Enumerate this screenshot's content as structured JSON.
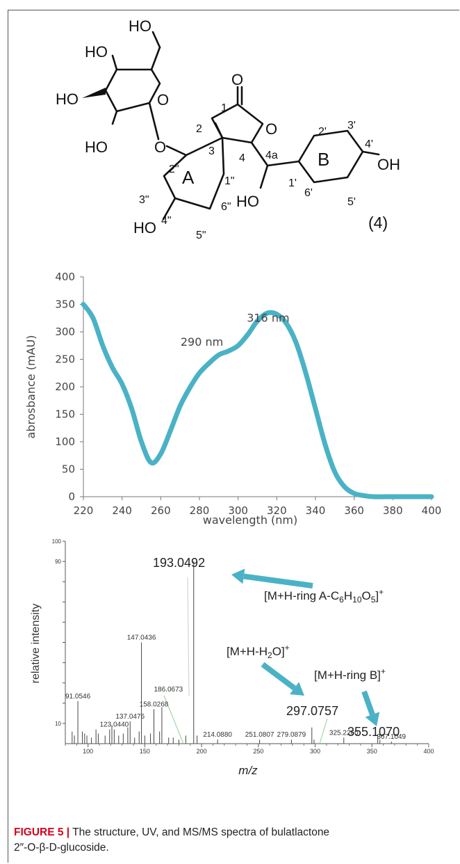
{
  "figure": {
    "caption_label": "FIGURE 5 |",
    "caption_text": " The structure, UV, and MS/MS spectra of bulatlactone 2″-O-β-D-glucoside.",
    "caption_text_part1": " The structure, UV, and MS/MS spectra of bulatlactone",
    "caption_text_part2": "2″-O-β-D-glucoside."
  },
  "structure": {
    "compound_label": "(4)",
    "groups": {
      "ho_top": "HO",
      "ho_c4": "HO",
      "ho_c3": "HO",
      "ho_c2": "HO",
      "ring_o": "O",
      "glyc_o": "O",
      "lactone_o": "O",
      "carbonyl_o": "O",
      "oh_b": "OH",
      "ho_4a": "HO",
      "ho_a": "HO"
    },
    "ring_labels": {
      "a": "A",
      "b": "B"
    },
    "atom_labels": {
      "c1": "1",
      "c2": "2",
      "c3": "3",
      "c4": "4",
      "c4a": "4a",
      "c2p": "2'",
      "c3p": "3'",
      "c4p": "4'",
      "c5p": "5'",
      "c6p": "6'",
      "c1p": "1'",
      "c1pp": "1\"",
      "c2pp": "2\"",
      "c3pp": "3\"",
      "c4pp": "4\"",
      "c5pp": "5\"",
      "c6pp": "6\""
    }
  },
  "chart_data": [
    {
      "type": "line",
      "title": "",
      "xlabel": "wavelength (nm)",
      "ylabel": "abrosbance (mAU)",
      "xlim": [
        220,
        400
      ],
      "ylim": [
        0,
        400
      ],
      "xticks": [
        220,
        240,
        260,
        280,
        300,
        320,
        340,
        360,
        380,
        400
      ],
      "yticks": [
        0,
        50,
        100,
        150,
        200,
        250,
        300,
        350,
        400
      ],
      "grid": false,
      "color": "#4ab2c6",
      "annotations": [
        {
          "text": "316 nm",
          "x": 316,
          "y": 350
        },
        {
          "text": "290 nm",
          "x": 290,
          "y": 290
        }
      ],
      "series": [
        {
          "x": [
            220,
            225,
            230,
            235,
            240,
            245,
            250,
            255,
            260,
            265,
            270,
            275,
            280,
            285,
            290,
            295,
            300,
            305,
            310,
            315,
            320,
            325,
            330,
            335,
            340,
            345,
            350,
            355,
            360,
            365,
            370,
            380,
            390,
            400
          ],
          "y": [
            350,
            325,
            275,
            235,
            205,
            160,
            100,
            62,
            78,
            120,
            165,
            198,
            225,
            243,
            258,
            265,
            275,
            295,
            320,
            334,
            332,
            315,
            280,
            225,
            160,
            95,
            45,
            18,
            6,
            2,
            0,
            0,
            0,
            0
          ]
        }
      ]
    },
    {
      "type": "bar",
      "title": "",
      "xlabel": "m/z",
      "ylabel": "relative intensity",
      "xlim": [
        80,
        400
      ],
      "ylim": [
        0,
        100
      ],
      "xticks": [
        100,
        150,
        200,
        250,
        300,
        350,
        400
      ],
      "yticks": [
        10,
        20,
        30,
        40,
        50,
        60,
        70,
        80,
        90,
        100
      ],
      "ytick_labels": [
        "10",
        "",
        "",
        "",
        "",
        "",
        "",
        "",
        "90",
        "100"
      ],
      "peaks": [
        {
          "mz": 86,
          "i": 6
        },
        {
          "mz": 88,
          "i": 4
        },
        {
          "mz": 91.0546,
          "i": 21,
          "label": "91.0546"
        },
        {
          "mz": 95,
          "i": 6
        },
        {
          "mz": 97,
          "i": 5
        },
        {
          "mz": 99,
          "i": 4
        },
        {
          "mz": 103,
          "i": 3
        },
        {
          "mz": 107,
          "i": 7
        },
        {
          "mz": 109,
          "i": 5
        },
        {
          "mz": 115,
          "i": 4
        },
        {
          "mz": 119,
          "i": 7
        },
        {
          "mz": 121,
          "i": 9
        },
        {
          "mz": 123.044,
          "i": 7,
          "label": "123.0440"
        },
        {
          "mz": 127,
          "i": 4
        },
        {
          "mz": 131,
          "i": 5
        },
        {
          "mz": 135,
          "i": 8
        },
        {
          "mz": 137.0476,
          "i": 11,
          "label": "137.0476"
        },
        {
          "mz": 141,
          "i": 3
        },
        {
          "mz": 145,
          "i": 6
        },
        {
          "mz": 147.0436,
          "i": 50,
          "label": "147.0436"
        },
        {
          "mz": 150,
          "i": 4
        },
        {
          "mz": 155,
          "i": 5
        },
        {
          "mz": 158.0268,
          "i": 17,
          "label": "158.0268"
        },
        {
          "mz": 163,
          "i": 6
        },
        {
          "mz": 165,
          "i": 18
        },
        {
          "mz": 171,
          "i": 3
        },
        {
          "mz": 175,
          "i": 3
        },
        {
          "mz": 180,
          "i": 2
        },
        {
          "mz": 186.0673,
          "i": 4
        },
        {
          "mz": 193.0492,
          "i": 90,
          "label": "193.0492"
        },
        {
          "mz": 196,
          "i": 4
        },
        {
          "mz": 214.088,
          "i": 2,
          "label": "214.0880"
        },
        {
          "mz": 251.0807,
          "i": 2,
          "label": "251.0807"
        },
        {
          "mz": 279.0879,
          "i": 2,
          "label": "279.0879"
        },
        {
          "mz": 297.0757,
          "i": 8
        },
        {
          "mz": 299,
          "i": 2
        },
        {
          "mz": 325.226,
          "i": 3,
          "label": "325.2260"
        },
        {
          "mz": 355.107,
          "i": 4
        },
        {
          "mz": 357,
          "i": 2
        },
        {
          "mz": 367.1049,
          "i": 1,
          "label": "367.1049"
        }
      ],
      "side_labels": [
        {
          "text": "186.0673",
          "mz": 186.0673
        }
      ],
      "highlight_labels": [
        {
          "text": "193.0492",
          "mz": 193.0492
        },
        {
          "text": "297.0757",
          "mz": 297.0757
        },
        {
          "text": "355.1070",
          "mz": 355.107
        }
      ],
      "fragment_labels": {
        "ring_a_lead": "[M+H-ring A-C",
        "ring_a_sub1": "6",
        "ring_a_mid1": "H",
        "ring_a_sub2": "10",
        "ring_a_mid2": "O",
        "ring_a_sub3": "5",
        "ring_a_close": "]",
        "ring_a_sup": "+",
        "water_lead": "[M+H-H",
        "water_sub": "2",
        "water_tail": "O]",
        "water_sup": "+",
        "ring_b_lead": "[M+H-ring B]",
        "ring_b_sup": "+"
      },
      "arrow_color": "#4ab2c6",
      "leader_color": "#8fd08f"
    }
  ]
}
